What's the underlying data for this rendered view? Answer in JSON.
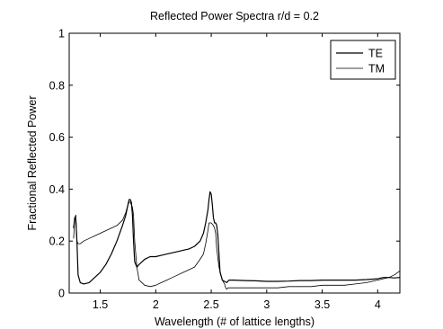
{
  "chart_data": {
    "type": "line",
    "title": "Reflected Power Spectra r/d = 0.2",
    "xlabel": "Wavelength (# of lattice lengths)",
    "ylabel": "Fractional Reflected Power",
    "xlim": [
      1.22,
      4.2
    ],
    "ylim": [
      0,
      1
    ],
    "xticks": [
      1.5,
      2,
      2.5,
      3,
      3.5,
      4
    ],
    "xtick_labels": [
      "1.5",
      "2",
      "2.5",
      "3",
      "3.5",
      "4"
    ],
    "yticks": [
      0,
      0.2,
      0.4,
      0.6,
      0.8,
      1
    ],
    "ytick_labels": [
      "0",
      "0.2",
      "0.4",
      "0.6",
      "0.8",
      "1"
    ],
    "grid": false,
    "legend_position": "top-right",
    "series": [
      {
        "name": "TE",
        "color": "#000000",
        "x": [
          1.26,
          1.27,
          1.28,
          1.29,
          1.3,
          1.32,
          1.35,
          1.4,
          1.45,
          1.5,
          1.55,
          1.6,
          1.65,
          1.7,
          1.73,
          1.75,
          1.76,
          1.77,
          1.78,
          1.79,
          1.8,
          1.81,
          1.83,
          1.85,
          1.9,
          1.95,
          2.0,
          2.05,
          2.1,
          2.15,
          2.2,
          2.25,
          2.3,
          2.35,
          2.4,
          2.43,
          2.45,
          2.47,
          2.48,
          2.49,
          2.5,
          2.51,
          2.52,
          2.53,
          2.54,
          2.55,
          2.56,
          2.57,
          2.58,
          2.6,
          2.62,
          2.64,
          2.65,
          2.66,
          2.7,
          2.8,
          2.9,
          3.0,
          3.1,
          3.2,
          3.3,
          3.4,
          3.5,
          3.6,
          3.7,
          3.8,
          3.9,
          4.0,
          4.05,
          4.1,
          4.15,
          4.2
        ],
        "y": [
          0.25,
          0.29,
          0.28,
          0.2,
          0.07,
          0.04,
          0.035,
          0.04,
          0.06,
          0.08,
          0.11,
          0.15,
          0.2,
          0.26,
          0.3,
          0.34,
          0.36,
          0.36,
          0.35,
          0.3,
          0.2,
          0.12,
          0.1,
          0.11,
          0.13,
          0.14,
          0.14,
          0.145,
          0.15,
          0.155,
          0.16,
          0.165,
          0.17,
          0.18,
          0.2,
          0.23,
          0.27,
          0.32,
          0.36,
          0.39,
          0.38,
          0.34,
          0.29,
          0.27,
          0.27,
          0.26,
          0.22,
          0.15,
          0.08,
          0.05,
          0.045,
          0.04,
          0.045,
          0.05,
          0.05,
          0.048,
          0.047,
          0.045,
          0.045,
          0.046,
          0.048,
          0.048,
          0.05,
          0.05,
          0.05,
          0.05,
          0.052,
          0.055,
          0.06,
          0.06,
          0.058,
          0.06
        ]
      },
      {
        "name": "TM",
        "color": "#000000",
        "x": [
          1.26,
          1.27,
          1.28,
          1.29,
          1.3,
          1.32,
          1.35,
          1.4,
          1.45,
          1.5,
          1.55,
          1.6,
          1.65,
          1.7,
          1.73,
          1.75,
          1.76,
          1.77,
          1.78,
          1.79,
          1.8,
          1.81,
          1.83,
          1.85,
          1.9,
          1.95,
          2.0,
          2.05,
          2.1,
          2.15,
          2.2,
          2.25,
          2.3,
          2.35,
          2.4,
          2.43,
          2.45,
          2.47,
          2.48,
          2.5,
          2.52,
          2.53,
          2.54,
          2.55,
          2.57,
          2.6,
          2.62,
          2.63,
          2.64,
          2.65,
          2.7,
          2.8,
          2.9,
          3.0,
          3.1,
          3.2,
          3.3,
          3.4,
          3.5,
          3.6,
          3.7,
          3.8,
          3.9,
          4.0,
          4.05,
          4.1,
          4.15,
          4.2
        ],
        "y": [
          0.21,
          0.29,
          0.3,
          0.2,
          0.19,
          0.19,
          0.2,
          0.21,
          0.22,
          0.23,
          0.24,
          0.25,
          0.26,
          0.28,
          0.31,
          0.34,
          0.35,
          0.35,
          0.34,
          0.33,
          0.3,
          0.2,
          0.1,
          0.05,
          0.03,
          0.025,
          0.03,
          0.04,
          0.05,
          0.06,
          0.07,
          0.08,
          0.09,
          0.1,
          0.13,
          0.15,
          0.19,
          0.24,
          0.27,
          0.27,
          0.26,
          0.25,
          0.23,
          0.17,
          0.1,
          0.05,
          0.035,
          0.02,
          0.015,
          0.02,
          0.02,
          0.02,
          0.02,
          0.02,
          0.02,
          0.025,
          0.025,
          0.025,
          0.03,
          0.03,
          0.03,
          0.035,
          0.04,
          0.05,
          0.055,
          0.06,
          0.07,
          0.085
        ]
      }
    ]
  }
}
